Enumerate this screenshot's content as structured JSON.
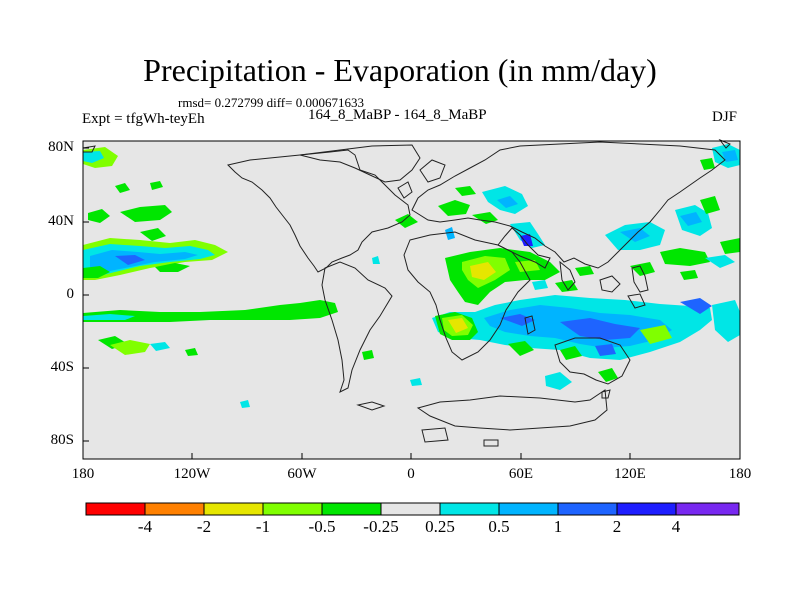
{
  "title": "Precipitation - Evaporation (in mm/day)",
  "stats": "rmsd= 0.272799 diff= 0.000671633",
  "experiment": "Expt = tfgWh-teyEh",
  "case": "164_8_MaBP - 164_8_MaBP",
  "season": "DJF",
  "axes": {
    "lat_labels": [
      "80N",
      "40N",
      "0",
      "40S",
      "80S"
    ],
    "lat_values": [
      80,
      40,
      0,
      -40,
      -80
    ],
    "lon_labels": [
      "180",
      "120W",
      "60W",
      "0",
      "60E",
      "120E",
      "180"
    ],
    "lon_values": [
      -180,
      -120,
      -60,
      0,
      60,
      120,
      180
    ],
    "lat_range": [
      -90,
      90
    ],
    "lon_range": [
      -180,
      180
    ]
  },
  "colorbar": {
    "colors": [
      "#ff0000",
      "#ff8000",
      "#e6e600",
      "#80ff00",
      "#00e600",
      "#e6e6e6",
      "#00e6e6",
      "#00b4ff",
      "#1e64ff",
      "#1e1eff",
      "#7828f0"
    ],
    "labels": [
      "-4",
      "-2",
      "-1",
      "-0.5",
      "-0.25",
      "0.25",
      "0.5",
      "1",
      "2",
      "4"
    ]
  },
  "colors": {
    "background": "#e6e6e6",
    "coast": "#222222",
    "lightgreen": "#80ff00",
    "green": "#00e600",
    "yellow": "#e6e600",
    "cyan": "#00e6e6",
    "lightblue": "#00b4ff",
    "blue": "#1e64ff",
    "darkblue": "#1e1eff"
  }
}
